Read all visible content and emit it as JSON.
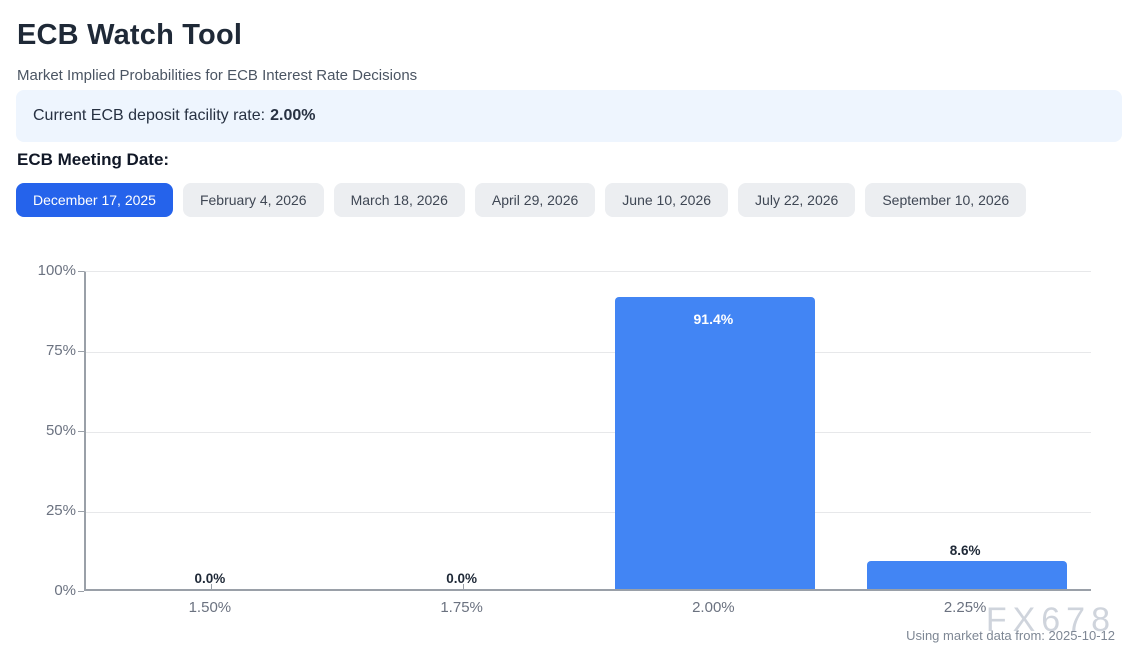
{
  "header": {
    "title": "ECB Watch Tool",
    "subtitle": "Market Implied Probabilities for ECB Interest Rate Decisions"
  },
  "banner": {
    "label": "Current ECB deposit facility rate:",
    "value": "2.00%"
  },
  "meeting_dates": {
    "label": "ECB Meeting Date:",
    "selected_index": 0,
    "buttons": [
      "December 17, 2025",
      "February 4, 2026",
      "March 18, 2026",
      "April 29, 2026",
      "June 10, 2026",
      "July 22, 2026",
      "September 10, 2026"
    ]
  },
  "chart_data": {
    "type": "bar",
    "title": "",
    "xlabel": "",
    "ylabel": "",
    "categories": [
      "1.50%",
      "1.75%",
      "2.00%",
      "2.25%"
    ],
    "values": [
      0.0,
      0.0,
      91.4,
      8.6
    ],
    "value_labels": [
      "0.0%",
      "0.0%",
      "91.4%",
      "8.6%"
    ],
    "ytick_labels": [
      "0%",
      "25%",
      "50%",
      "75%",
      "100%"
    ],
    "ylim": [
      0,
      100
    ],
    "grid": true,
    "legend": false,
    "bar_color": "#4285f4"
  },
  "footer": {
    "watermark": "FX678",
    "source_note": "Using market data from: 2025-10-12"
  },
  "colors": {
    "accent_blue": "#2563eb",
    "bar_blue": "#4285f4",
    "banner_bg": "#eef5fe"
  }
}
